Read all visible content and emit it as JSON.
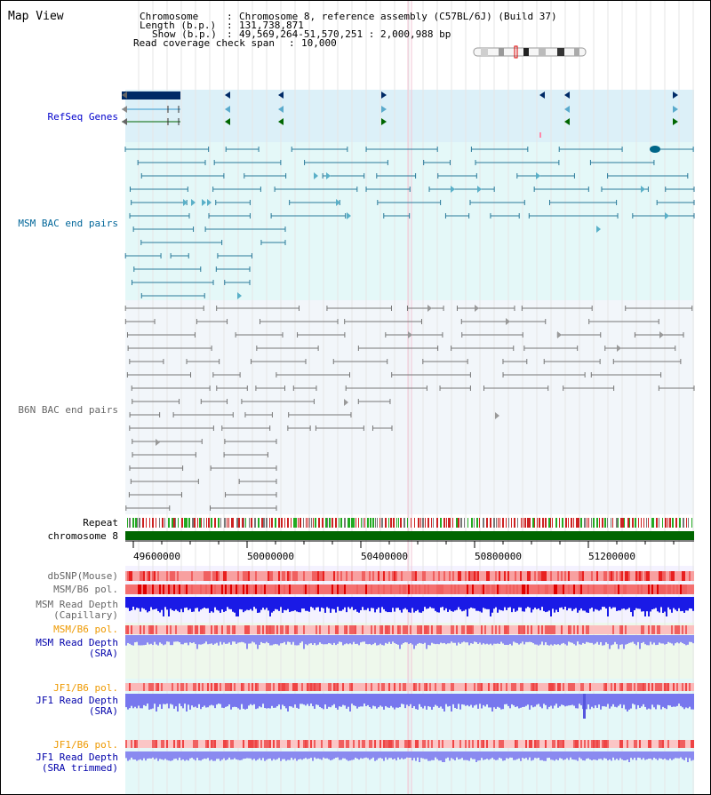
{
  "title": "Map View",
  "info": {
    "chromosome_key": "Chromosome",
    "chromosome_val": "Chromosome 8, reference assembly (C57BL/6J) (Build 37)",
    "length_key": "Length (b.p.)",
    "length_val": "131,738,871",
    "show_key": "Show (b.p.)",
    "show_val": "49,569,264-51,570,251 : 2,000,988 bp",
    "span_key": "Read coverage check span",
    "span_val": "10,000"
  },
  "tracks": {
    "refseq": "RefSeq Genes",
    "msm_bac": "MSM BAC end pairs",
    "b6n_bac": "B6N BAC end pairs",
    "repeat": "Repeat",
    "chromosome": "chromosome 8",
    "dbsnp": "dbSNP(Mouse)",
    "msm_b6_pol": "MSM/B6 pol.",
    "msm_depth_cap_1": "MSM Read Depth",
    "msm_depth_cap_2": "(Capillary)",
    "msm_b6_pol_2": "MSM/B6 pol.",
    "msm_depth_sra_1": "MSM Read Depth",
    "msm_depth_sra_2": "(SRA)",
    "jf1_b6_pol": "JF1/B6 pol.",
    "jf1_depth_sra_1": "JF1 Read Depth",
    "jf1_depth_sra_2": "(SRA)",
    "jf1_b6_pol_2": "JF1/B6 pol.",
    "jf1_depth_trim_1": "JF1 Read Depth",
    "jf1_depth_trim_2": "(SRA trimmed)"
  },
  "axis_ticks": [
    "49600000",
    "50000000",
    "50400000",
    "50800000",
    "51200000"
  ],
  "colors": {
    "refseq_label": "#0000cc",
    "msm_label": "#006699",
    "b6n_label": "#666666",
    "orange_label": "#ee9900",
    "blue_label": "#0000aa",
    "chromosome_bar": "#006600",
    "msm_feature": "#2a7a9a",
    "b6n_feature": "#777777",
    "refseq_band": "#dcf0f8"
  }
}
